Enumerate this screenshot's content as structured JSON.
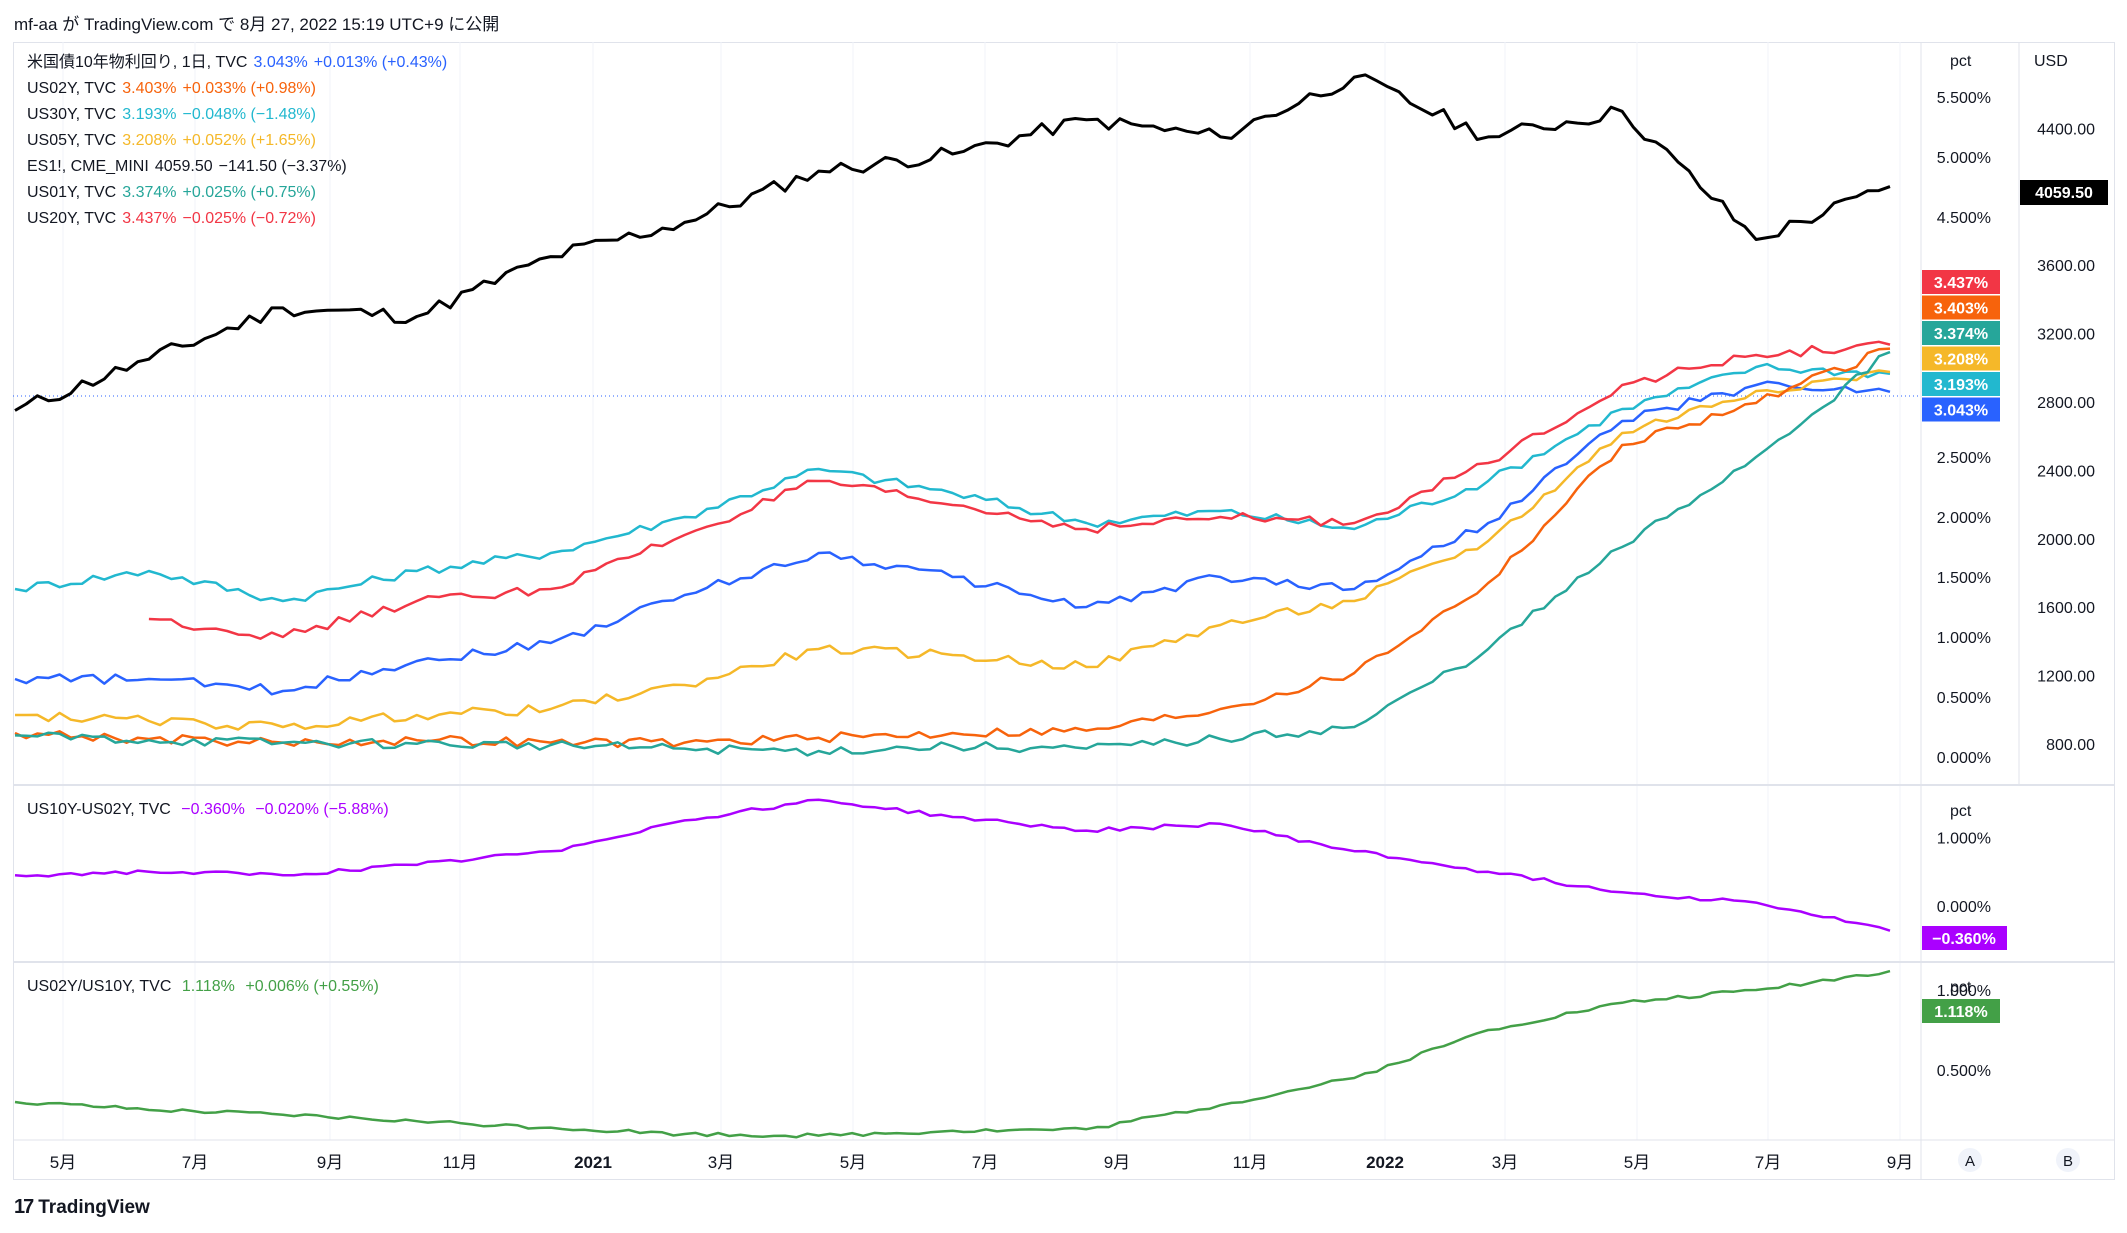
{
  "header": {
    "author": "mf-aa",
    "ga": "が",
    "site": "TradingView.com",
    "de": "で",
    "date": "8月 27, 2022 15:19 UTC+9",
    "published": "に公開"
  },
  "panes": {
    "main": {
      "unit_left": "pct",
      "unit_right": "USD",
      "es_label": "4059.50"
    },
    "spread": {
      "unit": "pct"
    },
    "ratio": {
      "unit": "pct"
    }
  },
  "legend_main": [
    {
      "name": "米国債10年物利回り, 1日, TVC",
      "value": "3.043%",
      "change": "+0.013% (+0.43%)",
      "color": "#2962ff"
    },
    {
      "name": "US02Y, TVC",
      "value": "3.403%",
      "change": "+0.033% (+0.98%)",
      "color": "#f7630c"
    },
    {
      "name": "US30Y, TVC",
      "value": "3.193%",
      "change": "−0.048% (−1.48%)",
      "color": "#22b8cf"
    },
    {
      "name": "US05Y, TVC",
      "value": "3.208%",
      "change": "+0.052% (+1.65%)",
      "color": "#f5b829"
    },
    {
      "name": "ES1!, CME_MINI",
      "value": "4059.50",
      "change": "−141.50 (−3.37%)",
      "color": "#131722"
    },
    {
      "name": "US01Y, TVC",
      "value": "3.374%",
      "change": "+0.025% (+0.75%)",
      "color": "#26a69a"
    },
    {
      "name": "US20Y, TVC",
      "value": "3.437%",
      "change": "−0.025% (−0.72%)",
      "color": "#f23645"
    }
  ],
  "legend_spread": {
    "name": "US10Y-US02Y, TVC",
    "value": "−0.360%",
    "change": "−0.020% (−5.88%)",
    "color": "#aa00ff"
  },
  "legend_ratio": {
    "name": "US02Y/US10Y, TVC",
    "value": "1.118%",
    "change": "+0.006% (+0.55%)",
    "color": "#43a047"
  },
  "footer": {
    "brand": "TradingView",
    "logo": "17"
  },
  "scale_buttons": {
    "a": "A",
    "b": "B"
  },
  "chart_data": [
    {
      "type": "line",
      "x_ticks": [
        "5月",
        "7月",
        "9月",
        "11月",
        "2021",
        "3月",
        "5月",
        "7月",
        "9月",
        "11月",
        "2022",
        "3月",
        "5月",
        "7月",
        "9月"
      ],
      "x_range": [
        "2020-04",
        "2022-08-26"
      ],
      "y_left_ticks": [
        "5.500%",
        "5.000%",
        "4.500%",
        "2.500%",
        "2.000%",
        "1.500%",
        "1.000%",
        "0.500%",
        "0.000%"
      ],
      "y_left_ticks_hidden_overlap": [
        "3.437%",
        "3.403%",
        "3.374%",
        "3.208%",
        "3.193%",
        "3.043%"
      ],
      "y_right_ticks": [
        "4400.00",
        "3600.00",
        "3200.00",
        "2800.00",
        "2400.00",
        "2000.00",
        "1600.00",
        "1200.00",
        "800.00"
      ],
      "x": [
        "2020-04",
        "2020-06",
        "2020-08",
        "2020-10",
        "2020-12",
        "2021-02",
        "2021-04",
        "2021-06",
        "2021-08",
        "2021-10",
        "2021-12",
        "2022-02",
        "2022-04",
        "2022-06",
        "2022-08-26"
      ],
      "series": [
        {
          "name": "ES1!, CME_MINI",
          "axis": "right",
          "color": "#000000",
          "values": [
            2750,
            3050,
            3350,
            3300,
            3650,
            3850,
            4150,
            4250,
            4450,
            4350,
            4700,
            4350,
            4500,
            3750,
            4059.5
          ]
        },
        {
          "name": "US30Y, TVC",
          "color": "#22b8cf",
          "values": [
            1.4,
            1.55,
            1.3,
            1.55,
            1.7,
            2.0,
            2.4,
            2.2,
            1.95,
            2.05,
            1.9,
            2.3,
            2.9,
            3.25,
            3.193
          ]
        },
        {
          "name": "US20Y, TVC",
          "color": "#f23645",
          "values": [
            null,
            1.15,
            1.0,
            1.3,
            1.4,
            1.85,
            2.3,
            2.1,
            1.9,
            2.0,
            1.95,
            2.45,
            3.1,
            3.35,
            3.437
          ]
        },
        {
          "name": "米国債10年物利回り, 1日, TVC",
          "color": "#2962ff",
          "values": [
            0.65,
            0.65,
            0.55,
            0.8,
            0.95,
            1.35,
            1.7,
            1.5,
            1.25,
            1.5,
            1.4,
            1.95,
            2.8,
            3.1,
            3.043
          ]
        },
        {
          "name": "US05Y, TVC",
          "color": "#f5b829",
          "values": [
            0.35,
            0.3,
            0.25,
            0.35,
            0.4,
            0.6,
            0.9,
            0.85,
            0.75,
            1.1,
            1.3,
            1.8,
            2.7,
            3.05,
            3.208
          ]
        },
        {
          "name": "US02Y, TVC",
          "color": "#f7630c",
          "values": [
            0.2,
            0.15,
            0.12,
            0.14,
            0.12,
            0.12,
            0.16,
            0.2,
            0.22,
            0.4,
            0.7,
            1.45,
            2.6,
            2.95,
            3.403
          ]
        },
        {
          "name": "US01Y, TVC",
          "color": "#26a69a",
          "values": [
            0.18,
            0.14,
            0.12,
            0.11,
            0.1,
            0.07,
            0.05,
            0.09,
            0.07,
            0.15,
            0.25,
            0.9,
            1.75,
            2.5,
            3.374
          ]
        }
      ]
    },
    {
      "type": "line",
      "y_ticks": [
        "1.000%",
        "0.000%"
      ],
      "series": [
        {
          "name": "US10Y-US02Y, TVC",
          "color": "#aa00ff",
          "values": [
            0.45,
            0.5,
            0.45,
            0.6,
            0.8,
            1.25,
            1.55,
            1.3,
            1.1,
            1.2,
            0.8,
            0.5,
            0.2,
            0.05,
            -0.36
          ]
        }
      ]
    },
    {
      "type": "line",
      "y_ticks": [
        "1.000%",
        "0.500%"
      ],
      "series": [
        {
          "name": "US02Y/US10Y, TVC",
          "color": "#43a047",
          "values": [
            0.3,
            0.25,
            0.22,
            0.18,
            0.14,
            0.1,
            0.09,
            0.12,
            0.13,
            0.28,
            0.45,
            0.75,
            0.92,
            1.0,
            1.118
          ]
        }
      ]
    }
  ]
}
